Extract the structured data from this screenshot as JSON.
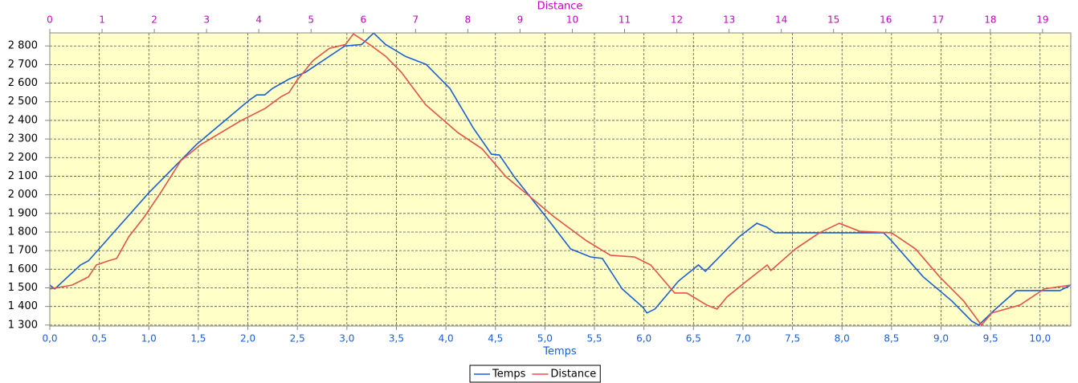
{
  "chart_data": {
    "type": "line",
    "xlabel": "Temps",
    "x2label": "Distance",
    "xlim": [
      0,
      10.31
    ],
    "x2lim": [
      0,
      19.54
    ],
    "ylim": [
      1295,
      2870
    ],
    "grid": true,
    "yticks": [
      {
        "value": 1300,
        "label": "1 300"
      },
      {
        "value": 1400,
        "label": "1 400"
      },
      {
        "value": 1500,
        "label": "1 500"
      },
      {
        "value": 1600,
        "label": "1 600"
      },
      {
        "value": 1700,
        "label": "1 700"
      },
      {
        "value": 1800,
        "label": "1 800"
      },
      {
        "value": 1900,
        "label": "1 900"
      },
      {
        "value": 2000,
        "label": "2 000"
      },
      {
        "value": 2100,
        "label": "2 100"
      },
      {
        "value": 2200,
        "label": "2 200"
      },
      {
        "value": 2300,
        "label": "2 300"
      },
      {
        "value": 2400,
        "label": "2 400"
      },
      {
        "value": 2500,
        "label": "2 500"
      },
      {
        "value": 2600,
        "label": "2 600"
      },
      {
        "value": 2700,
        "label": "2 700"
      },
      {
        "value": 2800,
        "label": "2 800"
      }
    ],
    "xticks": [
      {
        "value": 0,
        "label": "0,0"
      },
      {
        "value": 0.5,
        "label": "0,5"
      },
      {
        "value": 1,
        "label": "1,0"
      },
      {
        "value": 1.5,
        "label": "1,5"
      },
      {
        "value": 2,
        "label": "2,0"
      },
      {
        "value": 2.5,
        "label": "2,5"
      },
      {
        "value": 3,
        "label": "3,0"
      },
      {
        "value": 3.5,
        "label": "3,5"
      },
      {
        "value": 4,
        "label": "4,0"
      },
      {
        "value": 4.5,
        "label": "4,5"
      },
      {
        "value": 5,
        "label": "5,0"
      },
      {
        "value": 5.5,
        "label": "5,5"
      },
      {
        "value": 6,
        "label": "6,0"
      },
      {
        "value": 6.5,
        "label": "6,5"
      },
      {
        "value": 7,
        "label": "7,0"
      },
      {
        "value": 7.5,
        "label": "7,5"
      },
      {
        "value": 8,
        "label": "8,0"
      },
      {
        "value": 8.5,
        "label": "8,5"
      },
      {
        "value": 9,
        "label": "9,0"
      },
      {
        "value": 9.5,
        "label": "9,5"
      },
      {
        "value": 10,
        "label": "10,0"
      }
    ],
    "x2ticks": [
      0,
      1,
      2,
      3,
      4,
      5,
      6,
      7,
      8,
      9,
      10,
      11,
      12,
      13,
      14,
      15,
      16,
      17,
      18,
      19
    ],
    "xaxis_color": "#1a5fd6",
    "x2axis_color": "#cc00cc",
    "background": "#ffffc8",
    "legend": "bottom",
    "series": [
      {
        "name": "Temps",
        "color": "#1a5fd6",
        "axis": "x",
        "x": [
          0,
          0.05,
          0.31,
          0.39,
          1.0,
          1.48,
          2.01,
          2.09,
          2.17,
          2.25,
          2.42,
          2.58,
          2.98,
          3.15,
          3.27,
          3.39,
          3.59,
          3.8,
          4.04,
          4.28,
          4.46,
          4.54,
          4.69,
          5.01,
          5.26,
          5.46,
          5.58,
          5.78,
          5.99,
          6.03,
          6.11,
          6.35,
          6.55,
          6.62,
          6.96,
          7.14,
          7.24,
          7.32,
          7.61,
          8.42,
          8.5,
          8.82,
          9.11,
          9.31,
          9.38,
          9.55,
          9.76,
          10.2,
          10.31
        ],
        "values": [
          1515,
          1494,
          1623,
          1645,
          2011,
          2270,
          2507,
          2537,
          2537,
          2572,
          2623,
          2658,
          2800,
          2808,
          2869,
          2808,
          2744,
          2701,
          2572,
          2356,
          2218,
          2214,
          2097,
          1882,
          1709,
          1666,
          1658,
          1494,
          1395,
          1365,
          1386,
          1537,
          1623,
          1589,
          1774,
          1847,
          1826,
          1796,
          1796,
          1796,
          1753,
          1559,
          1429,
          1321,
          1300,
          1386,
          1485,
          1485,
          1515
        ]
      },
      {
        "name": "Distance",
        "color": "#e8504a",
        "axis": "x2",
        "x": [
          0,
          0.43,
          0.74,
          0.89,
          1.12,
          1.28,
          1.51,
          1.81,
          2.12,
          2.51,
          2.89,
          3.66,
          4.12,
          4.43,
          4.58,
          4.73,
          5.04,
          5.35,
          5.66,
          5.81,
          6.12,
          6.43,
          6.73,
          7.19,
          7.81,
          8.27,
          8.73,
          9.19,
          9.65,
          10.27,
          10.73,
          11.19,
          11.5,
          11.96,
          12.19,
          12.57,
          12.77,
          12.96,
          13.34,
          13.73,
          13.8,
          14.27,
          14.73,
          15.11,
          15.5,
          16.11,
          16.57,
          17.03,
          17.49,
          17.83,
          18.03,
          18.57,
          19.03,
          19.54
        ],
        "values": [
          1494,
          1515,
          1559,
          1623,
          1645,
          1658,
          1774,
          1882,
          2011,
          2184,
          2270,
          2399,
          2464,
          2528,
          2550,
          2615,
          2722,
          2787,
          2808,
          2865,
          2808,
          2744,
          2658,
          2485,
          2334,
          2248,
          2097,
          1990,
          1882,
          1753,
          1675,
          1666,
          1623,
          1472,
          1472,
          1408,
          1386,
          1451,
          1537,
          1623,
          1593,
          1709,
          1796,
          1847,
          1804,
          1796,
          1709,
          1559,
          1429,
          1300,
          1365,
          1408,
          1494,
          1515
        ]
      }
    ]
  }
}
